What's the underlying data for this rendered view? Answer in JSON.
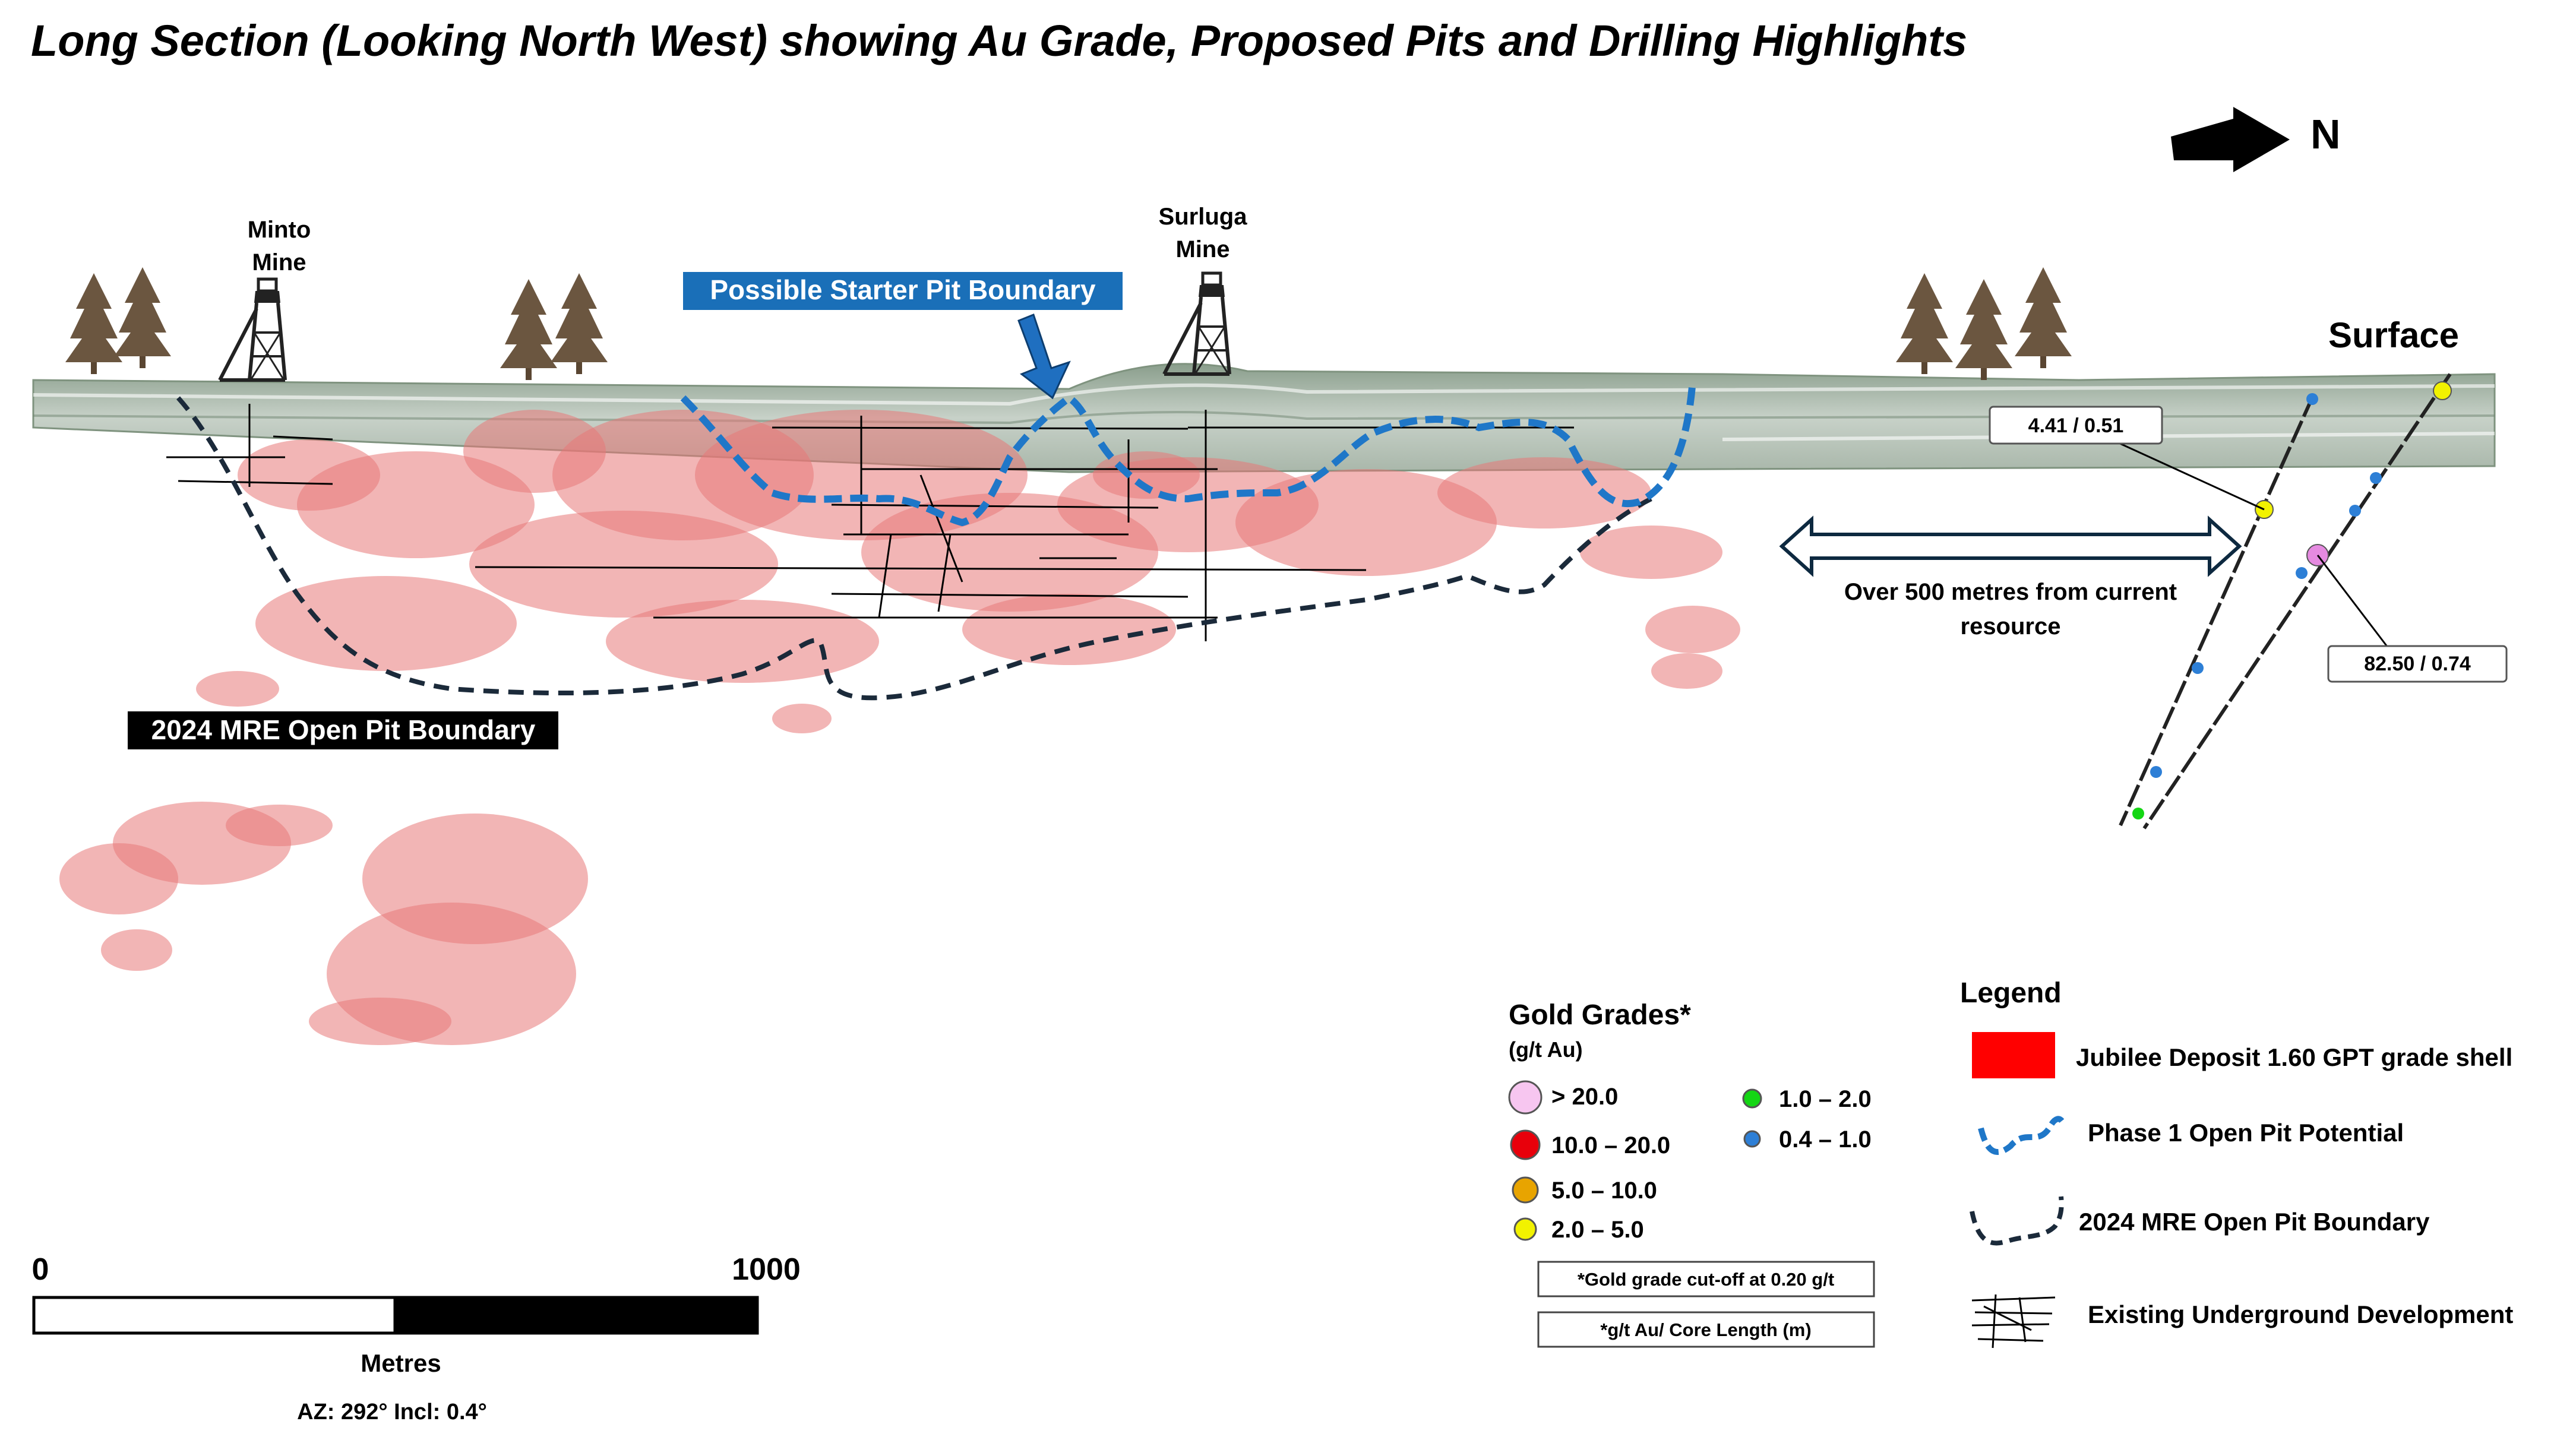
{
  "title": "Long Section (Looking North West) showing Au Grade, Proposed Pits and Drilling Highlights",
  "north_label": "N",
  "surface_label": "Surface",
  "mines": [
    {
      "line1": "Minto",
      "line2": "Mine"
    },
    {
      "line1": "Surluga",
      "line2": "Mine"
    }
  ],
  "starter_pit_label": "Possible Starter Pit Boundary",
  "mre_pit_label": "2024 MRE Open Pit Boundary",
  "distance_note": {
    "line1": "Over 500 metres from current",
    "line2": "resource"
  },
  "intercepts": [
    {
      "label": "4.41 / 0.51",
      "color": "#f2e600"
    },
    {
      "label": "82.50 / 0.74",
      "color": "#e58ae0"
    }
  ],
  "scale_bar": {
    "start": "0",
    "end": "1000",
    "unit": "Metres",
    "orientation": "AZ: 292°   Incl: 0.4°"
  },
  "gold_grades": {
    "title": "Gold Grades*",
    "unit": "(g/t Au)",
    "classes": [
      {
        "label": "> 20.0",
        "color": "#f7c6f0"
      },
      {
        "label": "10.0 – 20.0",
        "color": "#e8000b"
      },
      {
        "label": "5.0 – 10.0",
        "color": "#e8a400"
      },
      {
        "label": "2.0 – 5.0",
        "color": "#f2f200"
      },
      {
        "label": "1.0 – 2.0",
        "color": "#14d614"
      },
      {
        "label": "0.4 – 1.0",
        "color": "#2d7fd6"
      }
    ],
    "notes": [
      "*Gold grade cut-off at 0.20 g/t",
      "*g/t Au/ Core Length (m)"
    ]
  },
  "legend": {
    "title": "Legend",
    "items": [
      {
        "label": "Jubilee Deposit 1.60 GPT grade shell",
        "color": "#ff0000"
      },
      {
        "label": "Phase 1 Open Pit Potential",
        "color": "#1f77c8"
      },
      {
        "label": "2024 MRE Open Pit Boundary",
        "color": "#1b2a3a"
      },
      {
        "label": "Existing Underground  Development",
        "color": "#000000"
      }
    ]
  }
}
